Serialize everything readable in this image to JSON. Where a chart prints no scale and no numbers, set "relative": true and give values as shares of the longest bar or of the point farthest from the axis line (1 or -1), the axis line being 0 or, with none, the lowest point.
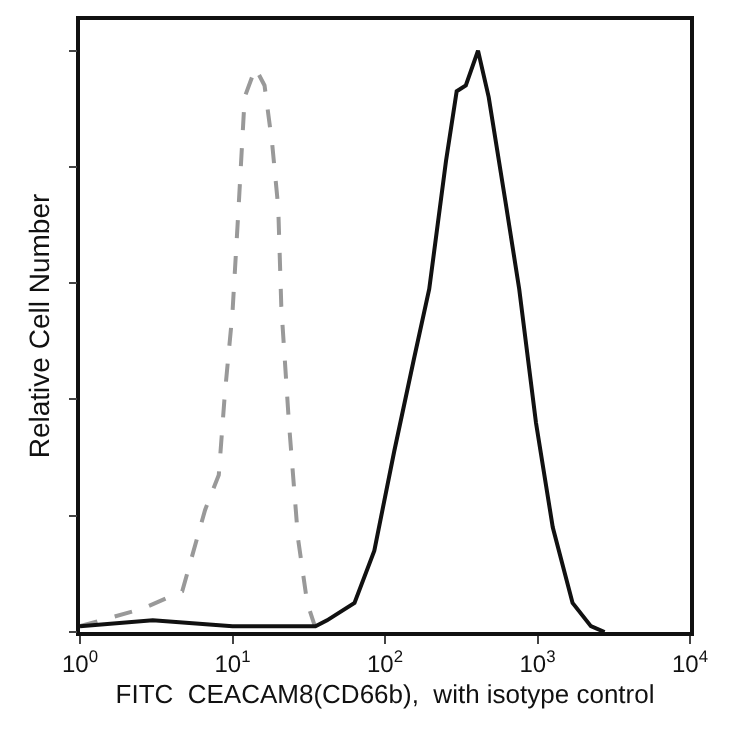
{
  "chart_data": {
    "type": "line",
    "relative": true,
    "log": "x",
    "xlabel": "FITC  CEACAM8(CD66b),  with isotype control",
    "ylabel": "Relative Cell Number",
    "xlim": [
      1,
      10000
    ],
    "xticks": [
      {
        "value": 1,
        "label": "10$^{0}$"
      },
      {
        "value": 10,
        "label": "10$^{1}$"
      },
      {
        "value": 100,
        "label": "10$^{2}$"
      },
      {
        "value": 1000,
        "label": "10$^{3}$"
      },
      {
        "value": 10000,
        "label": "10$^{4}$"
      }
    ],
    "tick_labels": "x",
    "grid": false,
    "marker": "none",
    "series": [
      {
        "color": "#999999",
        "line_style": "dashed",
        "x": [
          1,
          2.57,
          4.68,
          6.61,
          8.13,
          8.91,
          10,
          10.96,
          12.02,
          14.13,
          16.22,
          18.2,
          19.95,
          20.89,
          23.44,
          26.92,
          30.9,
          34.67
        ],
        "values": [
          0.01,
          0.04,
          0.07,
          0.21,
          0.27,
          0.41,
          0.55,
          0.73,
          0.92,
          0.97,
          0.94,
          0.84,
          0.73,
          0.56,
          0.36,
          0.16,
          0.05,
          0.01
        ]
      },
      {
        "color": "#111111",
        "line_style": "solid",
        "x": [
          1,
          3,
          10,
          25,
          35,
          41.69,
          63.1,
          85.11,
          114.8,
          154.9,
          195,
          251.2,
          295.1,
          338.8,
          407.4,
          478.6,
          616.6,
          758.6,
          977.2,
          1259,
          1698,
          2239,
          2754
        ],
        "values": [
          0.01,
          0.02,
          0.01,
          0.01,
          0.01,
          0.02,
          0.05,
          0.14,
          0.31,
          0.47,
          0.59,
          0.81,
          0.93,
          0.94,
          1.0,
          0.92,
          0.74,
          0.59,
          0.36,
          0.18,
          0.05,
          0.01,
          0
        ]
      }
    ]
  }
}
